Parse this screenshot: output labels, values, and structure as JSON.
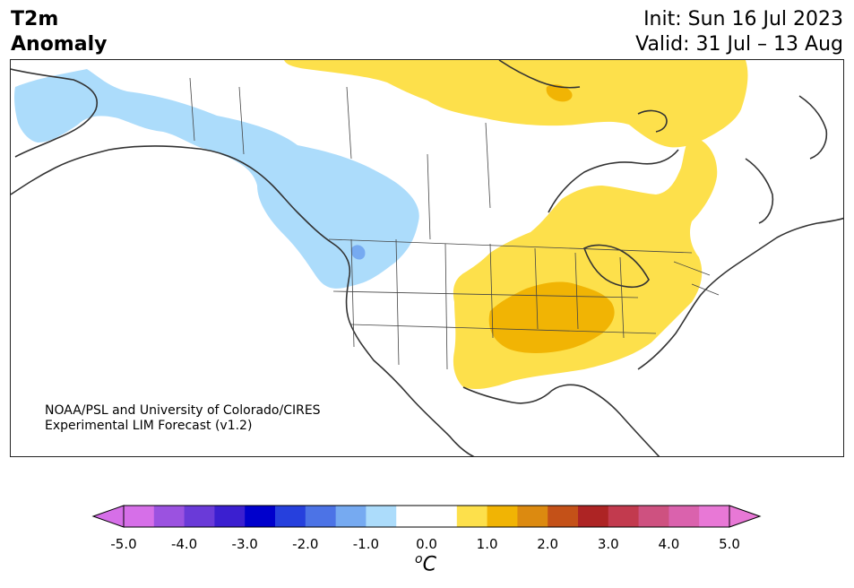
{
  "title": {
    "left_line1": "T2m",
    "left_line2": "Anomaly",
    "init": "Init: Sun 16 Jul 2023",
    "valid": "Valid: 31 Jul – 13 Aug"
  },
  "credit": {
    "line1": "NOAA/PSL and University of Colorado/CIRES",
    "line2": "Experimental LIM Forecast (v1.2)"
  },
  "colorbar": {
    "unit_prefix": "o",
    "unit_letter": "C",
    "ticks": [
      "-5.0",
      "-4.0",
      "-3.0",
      "-2.0",
      "-1.0",
      "0.0",
      "1.0",
      "2.0",
      "3.0",
      "4.0",
      "5.0"
    ],
    "colors": [
      "#d66fe8",
      "#9b52e0",
      "#6a3ad8",
      "#3b1fd0",
      "#0000cc",
      "#2640dd",
      "#4c73e6",
      "#76aaf1",
      "#acdcfb",
      "#ffffff",
      "#ffffff",
      "#fde04b",
      "#f1b404",
      "#dc8a10",
      "#c45118",
      "#ad2424",
      "#c23a4e",
      "#ce5180",
      "#da62ad",
      "#e878d6"
    ],
    "under_color": "#d66fe8",
    "over_color": "#e878d6"
  },
  "legend_colors": {
    "weak_cool": "#acdcfb",
    "moderate_cool": "#76aaf1",
    "weak_warm": "#fde04b",
    "moderate_warm": "#f1b404"
  }
}
